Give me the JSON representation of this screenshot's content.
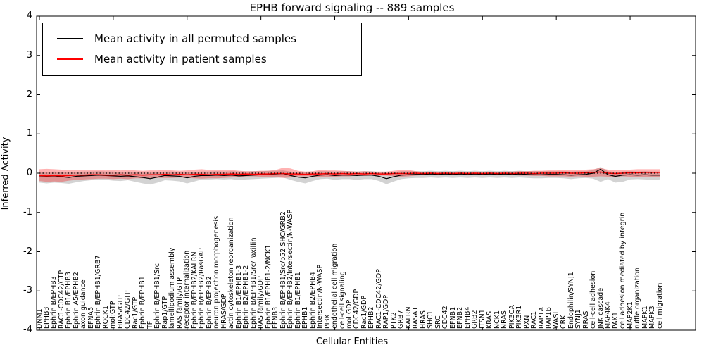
{
  "figure": {
    "title": "EPHB forward signaling -- 889 samples",
    "xlabel": "Cellular Entities",
    "ylabel": "Inferred Activity"
  },
  "legend": {
    "items": [
      {
        "label": "Mean activity in all permuted samples",
        "color": "#000000"
      },
      {
        "label": "Mean activity in patient samples",
        "color": "#ff0000"
      }
    ]
  },
  "colors": {
    "permuted_line": "#000000",
    "permuted_band": "rgba(128,128,128,0.35)",
    "patient_line": "#ff0000",
    "patient_band": "rgba(255,0,0,0.30)",
    "frame": "#000000"
  },
  "chart_data": {
    "type": "line",
    "title": "EPHB forward signaling -- 889 samples",
    "xlabel": "Cellular Entities",
    "ylabel": "Inferred Activity",
    "ylim": [
      -4,
      4
    ],
    "yticks": [
      -4,
      -3,
      -2,
      -1,
      0,
      1,
      2,
      3,
      4
    ],
    "x_major_tick_every": 10,
    "grid": false,
    "legend_position": "upper left",
    "zero_reference_line": {
      "y": 0,
      "style": "dotted",
      "color": "#000000"
    },
    "categories": [
      "DNM1",
      "EPHB3",
      "Ephrin B/EPHB3",
      "RAC1-CDC42/GTP",
      "Ephrin B1/EPHB3",
      "Ephrin A5/EPHB2",
      "axon guidance",
      "EFNA5",
      "Ephrin B/EPHB1/GRB7",
      "ROCK1",
      "mol:GTP",
      "HRAS/GTP",
      "CDC42/GTP",
      "Rac1/GTP",
      "Ephrin B/EPHB1",
      "TF",
      "Ephrin B/EPHB1/Src",
      "Rap1/GTP",
      "lamellipodium assembly",
      "RAS family/GTP",
      "receptor internalization",
      "Ephrin B/EPHB2/KALRN",
      "Ephrin B/EPHB2/RasGAP",
      "Ephrin B/EPHB2",
      "neuron projection morphogenesis",
      "HRAS/GDP",
      "actin cytoskeleton reorganization",
      "Ephrin B1/EPHB1-3",
      "Ephrin B2/EPHB1-2",
      "Ephrin B/EPHB1/Src/Paxillin",
      "RAS family/GDP",
      "Ephrin B1/EPHB1-2/NCK1",
      "EFNB3",
      "Ephrin B/EPHB1/Src/p52 SHC/GRB2",
      "Ephrin B/EPHB2/Intersectin/N-WASP",
      "Ephrin B1/EPHB1",
      "EPHB1",
      "Ephrin B2/EPHB4",
      "Intersectin/N-WASP",
      "PI3K",
      "endothelial cell migration",
      "cell-cell signaling",
      "mol:GDP",
      "CDC42/GDP",
      "Rac1/GDP",
      "EPHB2",
      "RAC1-CDC42/GDP",
      "RAP1/GDP",
      "PTK2",
      "GRB7",
      "KALRN",
      "RASA1",
      "HRAS",
      "SHC1",
      "SRC",
      "CDC42",
      "EFNB1",
      "EFNB2",
      "EPHB4",
      "GRB2",
      "ITSN1",
      "KRAS",
      "NCK1",
      "NRAS",
      "PIK3CA",
      "PIK3R1",
      "PXN",
      "RAC1",
      "RAP1A",
      "RAP1B",
      "WASL",
      "CRK",
      "Endophilin/SYNJ1",
      "SYNJ1",
      "RRAS",
      "cell-cell adhesion",
      "JNK cascade",
      "MAP4K4",
      "PAK1",
      "cell adhesion mediated by integrin",
      "MAP2K1",
      "ruffle organization",
      "MAPK1",
      "MAPK3",
      "cell migration"
    ],
    "series": [
      {
        "name": "Mean activity in all permuted samples",
        "color": "#000000",
        "line_width": 1.2,
        "band_color": "rgba(128,128,128,0.35)",
        "mean": [
          -0.07,
          -0.08,
          -0.07,
          -0.09,
          -0.11,
          -0.08,
          -0.07,
          -0.06,
          -0.05,
          -0.06,
          -0.07,
          -0.08,
          -0.07,
          -0.09,
          -0.11,
          -0.14,
          -0.1,
          -0.06,
          -0.07,
          -0.08,
          -0.12,
          -0.08,
          -0.06,
          -0.06,
          -0.05,
          -0.06,
          -0.05,
          -0.07,
          -0.06,
          -0.05,
          -0.04,
          -0.03,
          -0.02,
          -0.01,
          -0.06,
          -0.1,
          -0.12,
          -0.08,
          -0.05,
          -0.04,
          -0.06,
          -0.05,
          -0.05,
          -0.06,
          -0.05,
          -0.05,
          -0.08,
          -0.14,
          -0.09,
          -0.05,
          -0.04,
          -0.03,
          -0.03,
          -0.02,
          -0.03,
          -0.02,
          -0.03,
          -0.02,
          -0.03,
          -0.02,
          -0.03,
          -0.02,
          -0.03,
          -0.02,
          -0.03,
          -0.02,
          -0.03,
          -0.04,
          -0.04,
          -0.03,
          -0.03,
          -0.04,
          -0.05,
          -0.04,
          -0.03,
          0.0,
          0.1,
          -0.04,
          -0.08,
          -0.05,
          -0.04,
          -0.05,
          -0.04,
          -0.05,
          -0.05
        ],
        "upper": [
          0.04,
          0.03,
          0.04,
          0.03,
          0.02,
          0.03,
          0.04,
          0.04,
          0.05,
          0.04,
          0.04,
          0.03,
          0.04,
          0.03,
          0.02,
          0.01,
          0.03,
          0.04,
          0.04,
          0.03,
          0.02,
          0.03,
          0.04,
          0.04,
          0.05,
          0.04,
          0.05,
          0.04,
          0.04,
          0.05,
          0.05,
          0.06,
          0.06,
          0.07,
          0.04,
          0.02,
          0.02,
          0.03,
          0.05,
          0.05,
          0.04,
          0.05,
          0.05,
          0.04,
          0.05,
          0.05,
          0.03,
          0.01,
          0.03,
          0.05,
          0.05,
          0.05,
          0.05,
          0.06,
          0.05,
          0.06,
          0.05,
          0.06,
          0.05,
          0.06,
          0.05,
          0.06,
          0.05,
          0.06,
          0.05,
          0.06,
          0.05,
          0.05,
          0.05,
          0.05,
          0.05,
          0.05,
          0.04,
          0.05,
          0.05,
          0.08,
          0.16,
          0.05,
          0.03,
          0.04,
          0.05,
          0.04,
          0.05,
          0.04,
          0.04
        ],
        "lower": [
          -0.24,
          -0.26,
          -0.24,
          -0.25,
          -0.27,
          -0.23,
          -0.2,
          -0.18,
          -0.16,
          -0.17,
          -0.19,
          -0.2,
          -0.18,
          -0.22,
          -0.26,
          -0.29,
          -0.24,
          -0.18,
          -0.19,
          -0.21,
          -0.26,
          -0.21,
          -0.16,
          -0.16,
          -0.15,
          -0.16,
          -0.15,
          -0.18,
          -0.16,
          -0.15,
          -0.14,
          -0.13,
          -0.12,
          -0.11,
          -0.17,
          -0.22,
          -0.26,
          -0.2,
          -0.15,
          -0.14,
          -0.17,
          -0.15,
          -0.15,
          -0.17,
          -0.15,
          -0.15,
          -0.2,
          -0.28,
          -0.21,
          -0.15,
          -0.13,
          -0.12,
          -0.12,
          -0.11,
          -0.12,
          -0.11,
          -0.12,
          -0.11,
          -0.12,
          -0.11,
          -0.12,
          -0.11,
          -0.12,
          -0.11,
          -0.12,
          -0.11,
          -0.12,
          -0.13,
          -0.13,
          -0.12,
          -0.12,
          -0.13,
          -0.15,
          -0.13,
          -0.12,
          -0.14,
          -0.22,
          -0.15,
          -0.24,
          -0.22,
          -0.16,
          -0.15,
          -0.16,
          -0.17,
          -0.16
        ]
      },
      {
        "name": "Mean activity in patient samples",
        "color": "#ff0000",
        "line_width": 1.5,
        "band_color": "rgba(255,0,0,0.30)",
        "mean": [
          -0.06,
          -0.07,
          -0.06,
          -0.07,
          -0.06,
          -0.05,
          -0.05,
          -0.04,
          -0.04,
          -0.05,
          -0.05,
          -0.04,
          -0.05,
          -0.04,
          -0.05,
          -0.04,
          -0.04,
          -0.03,
          -0.04,
          -0.03,
          -0.04,
          -0.03,
          -0.03,
          -0.04,
          -0.03,
          -0.03,
          -0.02,
          -0.03,
          -0.02,
          -0.03,
          -0.02,
          -0.02,
          -0.01,
          -0.01,
          -0.02,
          -0.02,
          -0.03,
          -0.02,
          -0.02,
          -0.01,
          -0.02,
          -0.01,
          -0.02,
          -0.01,
          -0.02,
          -0.01,
          -0.02,
          -0.02,
          -0.01,
          -0.01,
          -0.01,
          0.0,
          -0.01,
          0.0,
          -0.01,
          0.0,
          -0.01,
          0.0,
          -0.01,
          0.0,
          -0.01,
          0.0,
          -0.01,
          0.0,
          -0.01,
          0.0,
          0.0,
          -0.01,
          0.0,
          0.0,
          0.0,
          0.01,
          0.0,
          0.0,
          0.01,
          0.02,
          0.03,
          0.0,
          -0.01,
          0.0,
          0.01,
          0.01,
          0.02,
          0.02,
          0.02
        ],
        "upper": [
          0.1,
          0.11,
          0.1,
          0.09,
          0.08,
          0.08,
          0.09,
          0.08,
          0.08,
          0.07,
          0.08,
          0.07,
          0.08,
          0.07,
          0.06,
          0.07,
          0.07,
          0.08,
          0.07,
          0.06,
          0.07,
          0.09,
          0.1,
          0.08,
          0.09,
          0.08,
          0.08,
          0.06,
          0.05,
          0.05,
          0.06,
          0.06,
          0.08,
          0.14,
          0.12,
          0.06,
          0.04,
          0.05,
          0.08,
          0.07,
          0.07,
          0.06,
          0.05,
          0.04,
          0.05,
          0.04,
          0.04,
          0.04,
          0.06,
          0.08,
          0.08,
          0.05,
          0.03,
          0.03,
          0.03,
          0.03,
          0.03,
          0.03,
          0.03,
          0.03,
          0.03,
          0.03,
          0.03,
          0.04,
          0.04,
          0.05,
          0.05,
          0.06,
          0.06,
          0.07,
          0.07,
          0.08,
          0.09,
          0.08,
          0.09,
          0.1,
          0.13,
          0.09,
          0.08,
          0.09,
          0.09,
          0.1,
          0.1,
          0.1,
          0.1
        ],
        "lower": [
          -0.2,
          -0.22,
          -0.21,
          -0.22,
          -0.19,
          -0.17,
          -0.16,
          -0.15,
          -0.14,
          -0.14,
          -0.15,
          -0.14,
          -0.15,
          -0.13,
          -0.13,
          -0.13,
          -0.12,
          -0.12,
          -0.12,
          -0.11,
          -0.12,
          -0.13,
          -0.14,
          -0.13,
          -0.13,
          -0.12,
          -0.11,
          -0.1,
          -0.08,
          -0.08,
          -0.09,
          -0.09,
          -0.1,
          -0.12,
          -0.11,
          -0.08,
          -0.08,
          -0.08,
          -0.11,
          -0.1,
          -0.09,
          -0.08,
          -0.08,
          -0.06,
          -0.07,
          -0.06,
          -0.06,
          -0.06,
          -0.08,
          -0.09,
          -0.08,
          -0.06,
          -0.05,
          -0.04,
          -0.05,
          -0.04,
          -0.05,
          -0.04,
          -0.05,
          -0.04,
          -0.05,
          -0.04,
          -0.05,
          -0.05,
          -0.05,
          -0.06,
          -0.06,
          -0.07,
          -0.07,
          -0.08,
          -0.08,
          -0.08,
          -0.09,
          -0.08,
          -0.09,
          -0.09,
          -0.08,
          -0.09,
          -0.09,
          -0.08,
          -0.09,
          -0.09,
          -0.09,
          -0.09,
          -0.09
        ]
      }
    ]
  }
}
